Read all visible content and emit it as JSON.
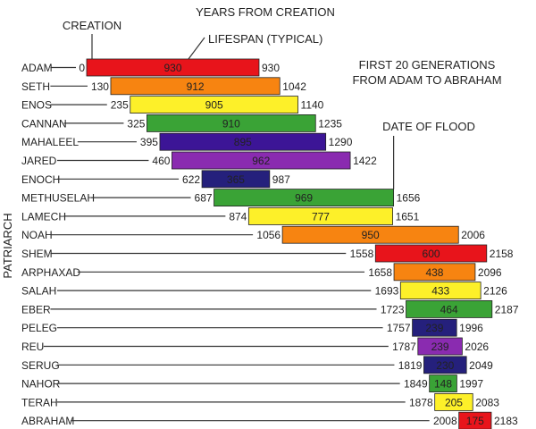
{
  "chart_data": {
    "type": "bar",
    "title": "YEARS FROM CREATION",
    "subtitle": "FIRST 20 GENERATIONS FROM ADAM TO ABRAHAM",
    "ylabel": "PATRIARCH",
    "annotations": {
      "creation": "CREATION",
      "lifespan": "LIFESPAN (TYPICAL)",
      "flood": "DATE OF FLOOD",
      "subtitle_line1": "FIRST 20 GENERATIONS",
      "subtitle_line2": "FROM ADAM TO ABRAHAM"
    },
    "flood_year": 1656,
    "xlim": [
      0,
      2183
    ],
    "grid": false,
    "legend": "none",
    "series": [
      {
        "name": "ADAM",
        "start": 0,
        "lifespan": 930,
        "end": 930,
        "color": "#e8141b"
      },
      {
        "name": "SETH",
        "start": 130,
        "lifespan": 912,
        "end": 1042,
        "color": "#f78411"
      },
      {
        "name": "ENOS",
        "start": 235,
        "lifespan": 905,
        "end": 1140,
        "color": "#fdf029"
      },
      {
        "name": "CANNAN",
        "start": 325,
        "lifespan": 910,
        "end": 1235,
        "color": "#3aa336"
      },
      {
        "name": "MAHALEEL",
        "start": 395,
        "lifespan": 895,
        "end": 1290,
        "color": "#3c1596"
      },
      {
        "name": "JARED",
        "start": 460,
        "lifespan": 962,
        "end": 1422,
        "color": "#8a2bb0"
      },
      {
        "name": "ENOCH",
        "start": 622,
        "lifespan": 365,
        "end": 987,
        "color": "#25207c"
      },
      {
        "name": "METHUSELAH",
        "start": 687,
        "lifespan": 969,
        "end": 1656,
        "color": "#3aa336"
      },
      {
        "name": "LAMECH",
        "start": 874,
        "lifespan": 777,
        "end": 1651,
        "color": "#fdf029"
      },
      {
        "name": "NOAH",
        "start": 1056,
        "lifespan": 950,
        "end": 2006,
        "color": "#f78411"
      },
      {
        "name": "SHEM",
        "start": 1558,
        "lifespan": 600,
        "end": 2158,
        "color": "#e8141b"
      },
      {
        "name": "ARPHAXAD",
        "start": 1658,
        "lifespan": 438,
        "end": 2096,
        "color": "#f78411"
      },
      {
        "name": "SALAH",
        "start": 1693,
        "lifespan": 433,
        "end": 2126,
        "color": "#fdf029"
      },
      {
        "name": "EBER",
        "start": 1723,
        "lifespan": 464,
        "end": 2187,
        "color": "#3aa336"
      },
      {
        "name": "PELEG",
        "start": 1757,
        "lifespan": 239,
        "end": 1996,
        "color": "#25207c"
      },
      {
        "name": "REU",
        "start": 1787,
        "lifespan": 239,
        "end": 2026,
        "color": "#8a2bb0"
      },
      {
        "name": "SERUG",
        "start": 1819,
        "lifespan": 230,
        "end": 2049,
        "color": "#25207c"
      },
      {
        "name": "NAHOR",
        "start": 1849,
        "lifespan": 148,
        "end": 1997,
        "color": "#3aa336"
      },
      {
        "name": "TERAH",
        "start": 1878,
        "lifespan": 205,
        "end": 2083,
        "color": "#fdf029"
      },
      {
        "name": "ABRAHAM",
        "start": 2008,
        "lifespan": 175,
        "end": 2183,
        "color": "#e8141b"
      }
    ]
  }
}
